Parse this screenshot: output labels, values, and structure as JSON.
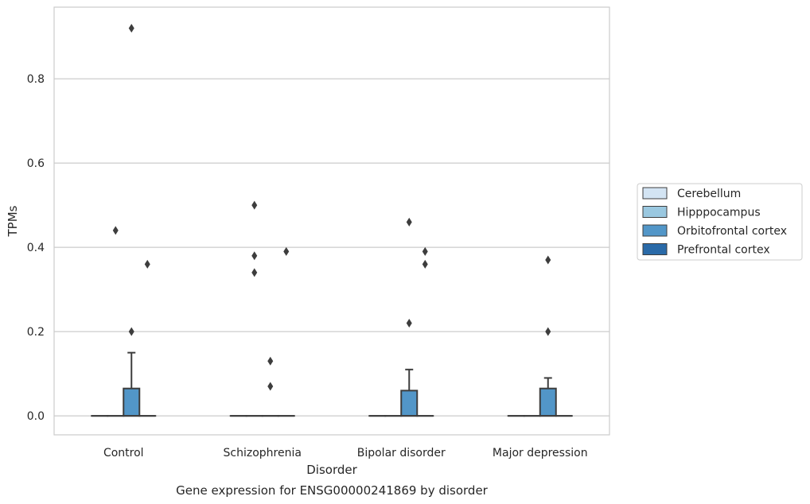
{
  "chart_data": {
    "type": "box",
    "title": "Gene expression for ENSG00000241869 by disorder",
    "xlabel": "Disorder",
    "ylabel": "TPMs",
    "ylim": [
      -0.045,
      0.97
    ],
    "yticks": [
      0.0,
      0.2,
      0.4,
      0.6,
      0.8
    ],
    "ytick_labels": [
      "0.0",
      "0.2",
      "0.4",
      "0.6",
      "0.8"
    ],
    "grid": "horizontal",
    "legend_position": "right",
    "categories": [
      "Control",
      "Schizophrenia",
      "Bipolar disorder",
      "Major depression"
    ],
    "series": [
      {
        "name": "Cerebellum",
        "color": "#d3e4f3",
        "boxes": [
          {
            "q1": 0,
            "median": 0,
            "q3": 0,
            "whislo": 0,
            "whishi": 0,
            "fliers": []
          },
          {
            "q1": 0,
            "median": 0,
            "q3": 0,
            "whislo": 0,
            "whishi": 0,
            "fliers": []
          },
          {
            "q1": 0,
            "median": 0,
            "q3": 0,
            "whislo": 0,
            "whishi": 0,
            "fliers": []
          },
          {
            "q1": 0,
            "median": 0,
            "q3": 0,
            "whislo": 0,
            "whishi": 0,
            "fliers": []
          }
        ]
      },
      {
        "name": "Hipppocampus",
        "color": "#9ac8e0",
        "boxes": [
          {
            "q1": 0,
            "median": 0,
            "q3": 0,
            "whislo": 0,
            "whishi": 0,
            "fliers": [
              0.44
            ]
          },
          {
            "q1": 0,
            "median": 0,
            "q3": 0,
            "whislo": 0,
            "whishi": 0,
            "fliers": [
              0.5,
              0.38,
              0.34
            ]
          },
          {
            "q1": 0,
            "median": 0,
            "q3": 0,
            "whislo": 0,
            "whishi": 0,
            "fliers": []
          },
          {
            "q1": 0,
            "median": 0,
            "q3": 0,
            "whislo": 0,
            "whishi": 0,
            "fliers": []
          }
        ]
      },
      {
        "name": "Orbitofrontal cortex",
        "color": "#5296c8",
        "boxes": [
          {
            "q1": 0,
            "median": 0,
            "q3": 0.065,
            "whislo": 0,
            "whishi": 0.15,
            "fliers": [
              0.92,
              0.2
            ]
          },
          {
            "q1": 0,
            "median": 0,
            "q3": 0,
            "whislo": 0,
            "whishi": 0,
            "fliers": [
              0.13,
              0.07
            ]
          },
          {
            "q1": 0,
            "median": 0,
            "q3": 0.06,
            "whislo": 0,
            "whishi": 0.11,
            "fliers": [
              0.46,
              0.22
            ]
          },
          {
            "q1": 0,
            "median": 0,
            "q3": 0.065,
            "whislo": 0,
            "whishi": 0.09,
            "fliers": [
              0.37,
              0.2
            ]
          }
        ]
      },
      {
        "name": "Prefrontal cortex",
        "color": "#2a6aa8",
        "boxes": [
          {
            "q1": 0,
            "median": 0,
            "q3": 0,
            "whislo": 0,
            "whishi": 0,
            "fliers": [
              0.36
            ]
          },
          {
            "q1": 0,
            "median": 0,
            "q3": 0,
            "whislo": 0,
            "whishi": 0,
            "fliers": [
              0.39
            ]
          },
          {
            "q1": 0,
            "median": 0,
            "q3": 0,
            "whislo": 0,
            "whishi": 0,
            "fliers": [
              0.39,
              0.36
            ]
          },
          {
            "q1": 0,
            "median": 0,
            "q3": 0,
            "whislo": 0,
            "whishi": 0,
            "fliers": []
          }
        ]
      }
    ]
  }
}
